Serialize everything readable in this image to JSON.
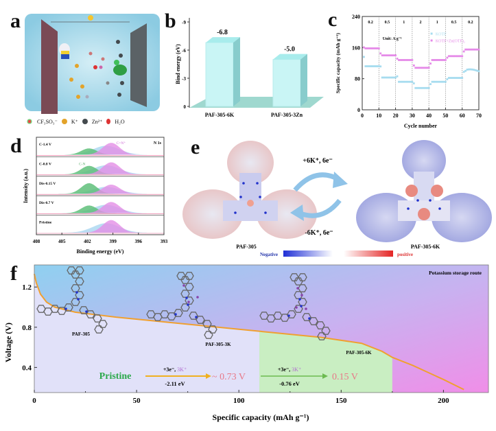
{
  "panel_labels": {
    "a": "a",
    "b": "b",
    "c": "c",
    "d": "d",
    "e": "e",
    "f": "f"
  },
  "panel_a": {
    "legend": [
      {
        "icon": "cf3so3-molecule-icon",
        "label": "CF₃SO₃⁻"
      },
      {
        "icon": "potassium-ion-icon",
        "label": "K⁺"
      },
      {
        "icon": "zinc-ion-icon",
        "label": "Zn²⁺"
      },
      {
        "icon": "water-molecule-icon",
        "label": "H₂O"
      }
    ],
    "colors": {
      "electrolyte": "#9fd3e6",
      "anode": "#7a4a55",
      "cathode": "#5b6266",
      "k_ion": "#e3a32a",
      "zn_ion": "#444a4e"
    }
  },
  "chart_data": [
    {
      "id": "b",
      "type": "bar",
      "title": "",
      "xlabel": "",
      "ylabel": "Bind energy (eV)",
      "categories": [
        "PAF-305-6K",
        "PAF-305-3Zn"
      ],
      "values": [
        -6.8,
        -5.0
      ],
      "data_labels": [
        "-6.8",
        "-5.0"
      ],
      "ylim": [
        0,
        -9
      ],
      "yticks": [
        "0",
        "-3",
        "-6",
        "-9"
      ],
      "ytick_values": [
        0,
        -3,
        -6,
        -9
      ],
      "bar_color": "#c9f5f5",
      "floor_color": "#9fd8cf"
    },
    {
      "id": "c",
      "type": "scatter",
      "xlabel": "Cycle number",
      "ylabel": "Specific capacity (mAh g⁻¹)",
      "xlim": [
        0,
        70
      ],
      "ylim": [
        0,
        240
      ],
      "xticks": [
        "0",
        "10",
        "20",
        "30",
        "40",
        "50",
        "60",
        "70"
      ],
      "xtick_values": [
        0,
        10,
        20,
        30,
        40,
        50,
        60,
        70
      ],
      "yticks": [
        "0",
        "80",
        "160",
        "240"
      ],
      "ytick_values": [
        0,
        80,
        160,
        240
      ],
      "rate_labels": [
        "0.2",
        "0.5",
        "1",
        "2",
        "1",
        "0.5",
        "0.2"
      ],
      "unit_label": "Unit: A g⁻¹",
      "segments": [
        [
          0,
          10
        ],
        [
          10,
          20
        ],
        [
          20,
          30
        ],
        [
          30,
          40
        ],
        [
          40,
          50
        ],
        [
          50,
          60
        ],
        [
          60,
          70
        ]
      ],
      "series": [
        {
          "name": "KOTF",
          "color": "#a6dcef",
          "segment_values": [
            112,
            83,
            72,
            56,
            72,
            82,
            100
          ],
          "start_values": [
            160,
            140,
            100,
            80,
            60,
            75,
            95
          ]
        },
        {
          "name": "KOTF+Zn(OTF)₂",
          "color": "#e58ae8",
          "segment_values": [
            158,
            140,
            128,
            108,
            128,
            138,
            155
          ],
          "start_values": [
            163,
            150,
            135,
            120,
            110,
            130,
            145
          ]
        }
      ]
    },
    {
      "id": "d",
      "type": "area",
      "xlabel": "Binding energy (eV)",
      "ylabel": "Intensity (a.u.)",
      "xlim": [
        408,
        393
      ],
      "xticks": [
        "408",
        "405",
        "402",
        "399",
        "396",
        "393"
      ],
      "xtick_values": [
        408,
        405,
        402,
        399,
        396,
        393
      ],
      "corner_label": "N 1s",
      "peak_labels": {
        "c_n_plus": "C=N⁺",
        "c_n": "C-N"
      },
      "rows": [
        {
          "label": "C-1.4 V",
          "cn_height": 0.45,
          "cnp_height": 0.85
        },
        {
          "label": "C-0.8 V",
          "cn_height": 0.6,
          "cnp_height": 0.85
        },
        {
          "label": "Dis-0.15 V",
          "cn_height": 0.75,
          "cnp_height": 0.65
        },
        {
          "label": "Dis-0.7 V",
          "cn_height": 0.55,
          "cnp_height": 0.8
        },
        {
          "label": "Pristine",
          "cn_height": 0.0,
          "cnp_height": 0.9
        }
      ],
      "colors": {
        "c_n": "#5fbf7a",
        "c_n_plus": "#e48ee6",
        "base": "#a9d6f0",
        "envelope": "#e05a8a"
      }
    },
    {
      "id": "f",
      "type": "line",
      "xlabel": "Specific capacity (mAh g⁻¹)",
      "ylabel": "Voltage (V)",
      "xlim": [
        0,
        222
      ],
      "ylim": [
        0.15,
        1.42
      ],
      "xticks": [
        "0",
        "50",
        "100",
        "150",
        "200"
      ],
      "xtick_values": [
        0,
        50,
        100,
        150,
        200
      ],
      "yticks": [
        "0.4",
        "0.8",
        "1.2"
      ],
      "ytick_values": [
        0.4,
        0.8,
        1.2
      ],
      "series": [
        {
          "name": "discharge",
          "color": "#f0a030",
          "x": [
            0,
            1,
            3,
            6,
            10,
            20,
            40,
            60,
            80,
            100,
            120,
            140,
            160,
            170,
            175,
            185,
            200,
            210
          ],
          "y": [
            1.33,
            1.24,
            1.13,
            1.05,
            1.0,
            0.95,
            0.9,
            0.86,
            0.82,
            0.78,
            0.74,
            0.7,
            0.64,
            0.56,
            0.5,
            0.42,
            0.28,
            0.18
          ]
        }
      ],
      "title_annotation": "Potassium storage route",
      "regions": [
        {
          "name": "pristine-region",
          "x_range": [
            0,
            110
          ],
          "color": "#dcdcf7"
        },
        {
          "name": "3k-region",
          "x_range": [
            110,
            175
          ],
          "color": "#c9eec2"
        }
      ],
      "molecule_labels": [
        "PAF-305",
        "PAF-305-3K",
        "PAF-305-6K"
      ],
      "route": {
        "start": "Pristine",
        "step1_top": "+3e⁻, ",
        "step1_top_k": "3K⁺",
        "step1_bottom": "-2.11 eV",
        "step1_result": "~ 0.73 V",
        "step2_top": "+3e⁻, ",
        "step2_top_k": "3K⁺",
        "step2_bottom": "-0.76 eV",
        "step2_result": "0.15 V"
      }
    }
  ],
  "panel_e": {
    "forward_label": "+6K⁺, 6e⁻",
    "reverse_label": "-6K⁺, 6e⁻",
    "left_molecule": "PAF-305",
    "right_molecule": "PAF-305-6K",
    "colorbar_negative": "Negative",
    "colorbar_positive": "positive",
    "colors": {
      "negative": "#1f2fd6",
      "positive": "#e42424",
      "arrow": "#8fc3e8"
    }
  }
}
